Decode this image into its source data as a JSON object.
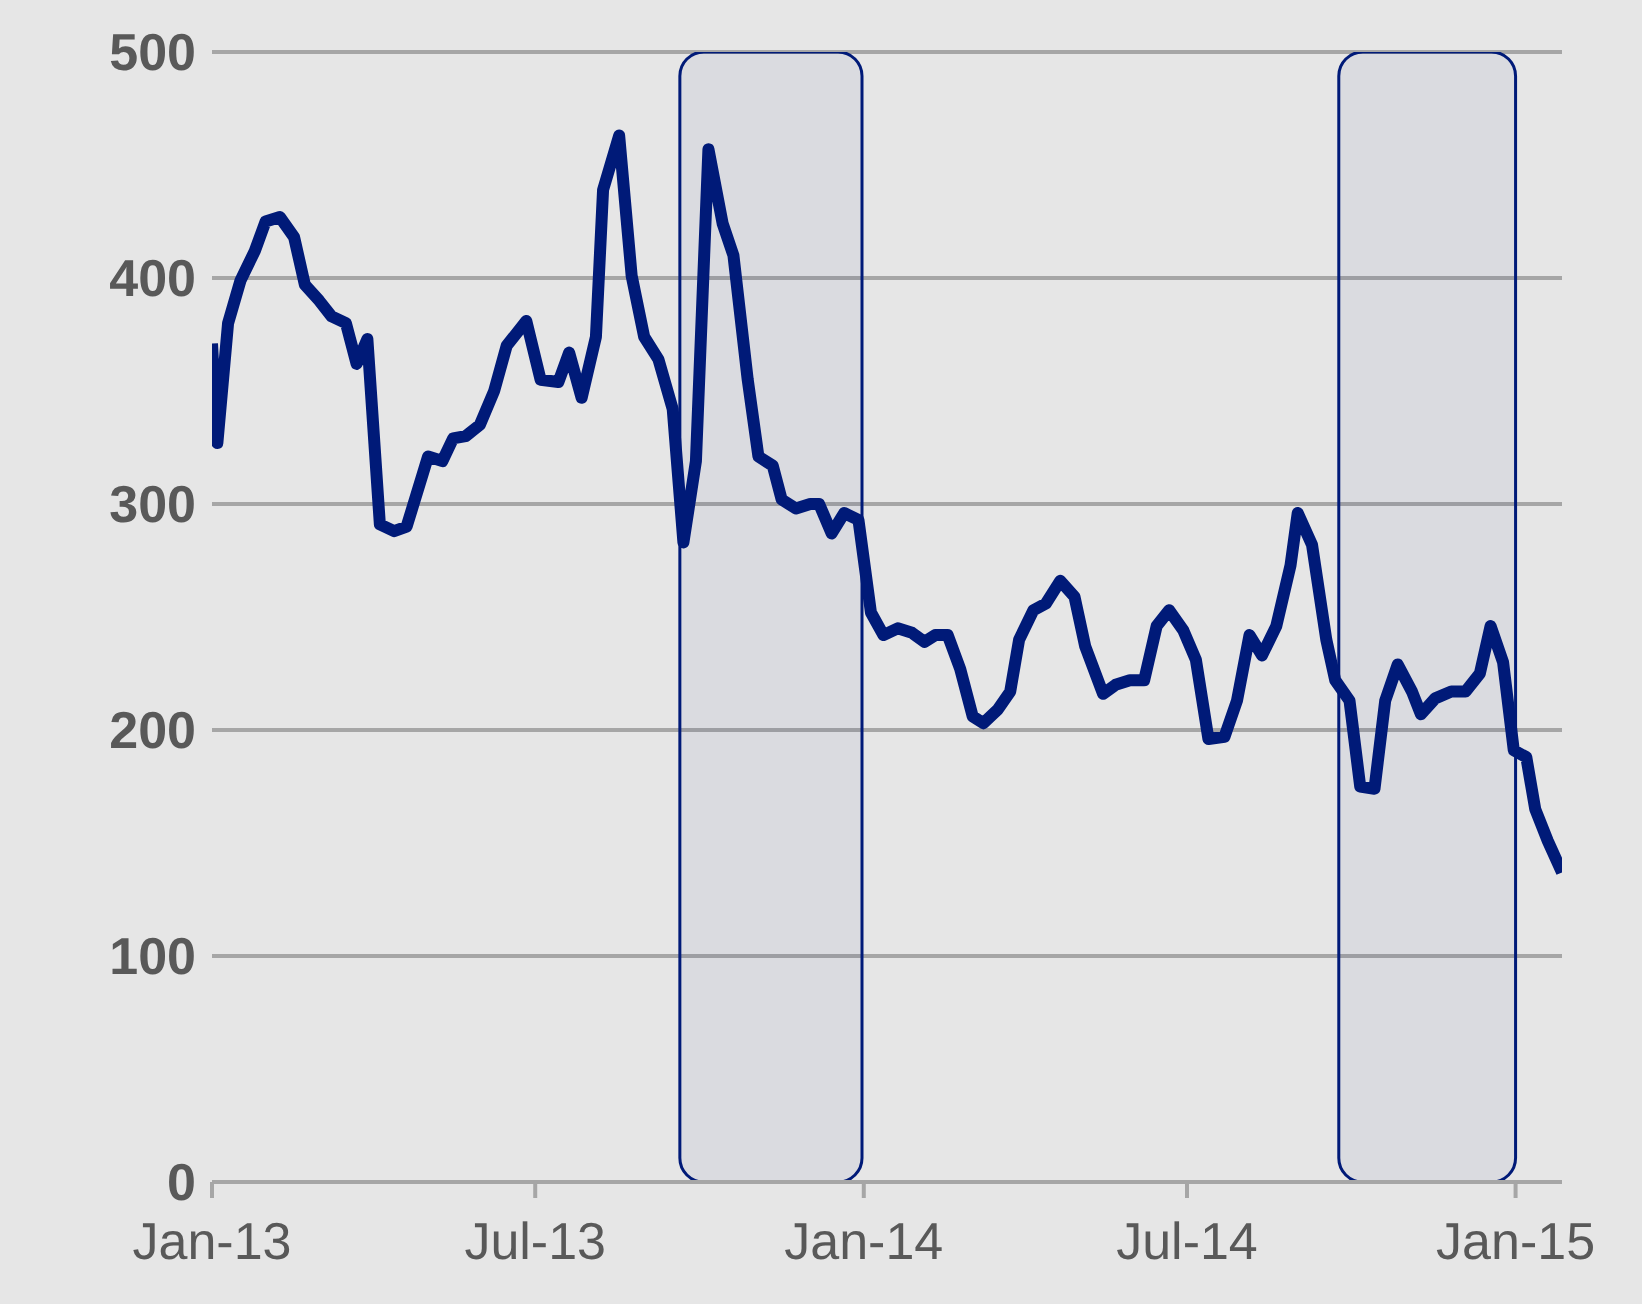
{
  "chart_data": {
    "type": "line",
    "x": [
      "2013-01-01",
      "2013-01-04",
      "2013-01-10",
      "2013-01-17",
      "2013-01-25",
      "2013-01-31",
      "2013-02-08",
      "2013-02-16",
      "2013-02-22",
      "2013-03-02",
      "2013-03-09",
      "2013-03-17",
      "2013-03-23",
      "2013-03-29",
      "2013-04-05",
      "2013-04-13",
      "2013-04-20",
      "2013-05-02",
      "2013-05-10",
      "2013-05-16",
      "2013-05-23",
      "2013-05-31",
      "2013-06-08",
      "2013-06-15",
      "2013-06-26",
      "2013-07-04",
      "2013-07-14",
      "2013-07-20",
      "2013-07-27",
      "2013-08-04",
      "2013-08-08",
      "2013-08-17",
      "2013-08-24",
      "2013-08-31",
      "2013-09-08",
      "2013-09-16",
      "2013-09-22",
      "2013-09-29",
      "2013-10-06",
      "2013-10-14",
      "2013-10-20",
      "2013-10-28",
      "2013-11-03",
      "2013-11-11",
      "2013-11-16",
      "2013-11-24",
      "2013-12-02",
      "2013-12-07",
      "2013-12-14",
      "2013-12-21",
      "2013-12-29",
      "2014-01-05",
      "2014-01-12",
      "2014-01-20",
      "2014-01-28",
      "2014-02-04",
      "2014-02-10",
      "2014-02-17",
      "2014-02-24",
      "2014-03-03",
      "2014-03-09",
      "2014-03-17",
      "2014-03-24",
      "2014-03-29",
      "2014-04-06",
      "2014-04-13",
      "2014-04-21",
      "2014-04-29",
      "2014-05-05",
      "2014-05-15",
      "2014-05-22",
      "2014-05-30",
      "2014-06-07",
      "2014-06-14",
      "2014-06-21",
      "2014-06-29",
      "2014-07-06",
      "2014-07-13",
      "2014-07-22",
      "2014-07-29",
      "2014-08-05",
      "2014-08-12",
      "2014-08-20",
      "2014-08-28",
      "2014-09-01",
      "2014-09-09",
      "2014-09-17",
      "2014-09-22",
      "2014-09-30",
      "2014-10-06",
      "2014-10-14",
      "2014-10-20",
      "2014-10-27",
      "2014-11-04",
      "2014-11-09",
      "2014-11-17",
      "2014-11-26",
      "2014-12-04",
      "2014-12-12",
      "2014-12-18",
      "2014-12-25",
      "2014-12-31",
      "2015-01-07",
      "2015-01-12",
      "2015-01-19",
      "2015-01-27"
    ],
    "series": [
      {
        "color": "#001a78",
        "values": [
          371,
          327,
          380,
          399,
          412,
          425,
          427,
          418,
          397,
          390,
          383,
          380,
          362,
          373,
          291,
          288,
          290,
          321,
          319,
          329,
          330,
          335,
          350,
          370,
          381,
          355,
          354,
          367,
          347,
          374,
          439,
          463,
          401,
          374,
          364,
          342,
          283,
          319,
          457,
          424,
          410,
          355,
          321,
          317,
          302,
          298,
          300,
          300,
          287,
          296,
          293,
          252,
          242,
          245,
          243,
          239,
          242,
          242,
          227,
          206,
          203,
          209,
          217,
          240,
          253,
          256,
          266,
          259,
          237,
          216,
          220,
          222,
          222,
          246,
          253,
          244,
          231,
          196,
          197,
          213,
          242,
          233,
          246,
          273,
          296,
          282,
          240,
          222,
          213,
          175,
          174,
          213,
          229,
          217,
          207,
          214,
          217,
          217,
          225,
          246,
          230,
          191,
          188,
          165,
          151,
          137
        ]
      }
    ],
    "xlim": [
      "2013-01-01",
      "2015-01-27"
    ],
    "xticks": [
      {
        "value": "2013-01-01",
        "label": "Jan-13"
      },
      {
        "value": "2013-07-01",
        "label": "Jul-13"
      },
      {
        "value": "2014-01-01",
        "label": "Jan-14"
      },
      {
        "value": "2014-07-01",
        "label": "Jul-14"
      },
      {
        "value": "2015-01-01",
        "label": "Jan-15"
      }
    ],
    "ylim": [
      0,
      500
    ],
    "yticks": [
      0,
      100,
      200,
      300,
      400,
      500
    ],
    "grid": "y",
    "marker": "none",
    "line_style": "solid",
    "legend": false,
    "bands": [
      {
        "axis": "x",
        "from": "2013-09-20",
        "to": "2013-12-31",
        "color": "#001a78"
      },
      {
        "axis": "x",
        "from": "2014-09-24",
        "to": "2015-01-01",
        "color": "#001a78"
      }
    ]
  }
}
